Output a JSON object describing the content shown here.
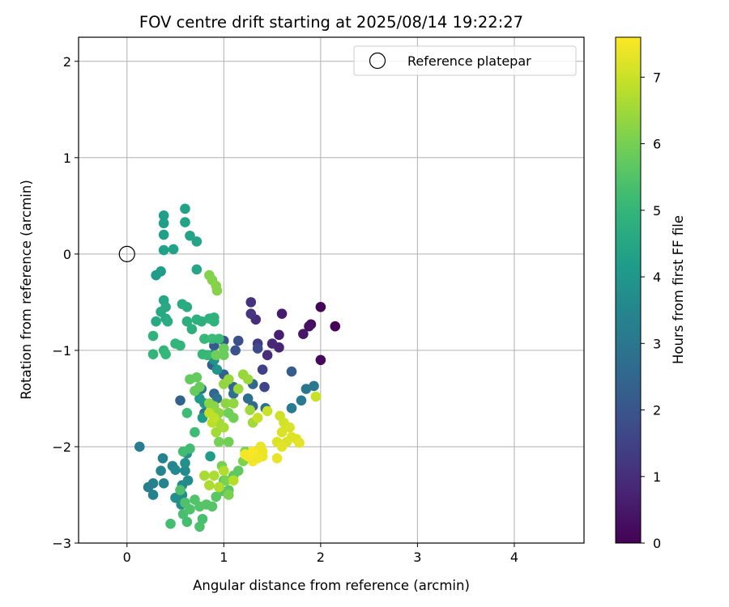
{
  "chart_data": {
    "type": "scatter",
    "title": "FOV centre drift starting at 2025/08/14 19:22:27",
    "xlabel": "Angular distance from reference (arcmin)",
    "ylabel": "Rotation from reference (arcmin)",
    "xlim": [
      -0.5,
      4.72
    ],
    "ylim": [
      -3,
      2.25
    ],
    "xticks": [
      0,
      1,
      2,
      3,
      4
    ],
    "yticks": [
      -3,
      -2,
      -1,
      0,
      1,
      2
    ],
    "grid": true,
    "legend": {
      "placement": "top-right",
      "entries": [
        "Reference platepar"
      ]
    },
    "reference_point": {
      "x": 0,
      "y": 0,
      "label": "Reference platepar"
    },
    "colorbar": {
      "label": "Hours from first FF file",
      "range": [
        0,
        7.6
      ],
      "ticks": [
        0,
        1,
        2,
        3,
        4,
        5,
        6,
        7
      ],
      "colormap": "viridis"
    },
    "points": [
      [
        2.15,
        -0.75,
        0.05
      ],
      [
        2.0,
        -0.55,
        0.1
      ],
      [
        2.0,
        -1.1,
        0.15
      ],
      [
        1.9,
        -0.73,
        0.25
      ],
      [
        1.88,
        -0.75,
        0.35
      ],
      [
        1.82,
        -0.83,
        0.45
      ],
      [
        1.6,
        -0.62,
        0.55
      ],
      [
        1.57,
        -0.84,
        0.65
      ],
      [
        1.57,
        -0.97,
        0.75
      ],
      [
        1.5,
        -0.93,
        0.85
      ],
      [
        1.45,
        -1.05,
        0.95
      ],
      [
        1.33,
        -0.68,
        1.0
      ],
      [
        1.28,
        -0.5,
        1.1
      ],
      [
        1.28,
        -0.62,
        1.2
      ],
      [
        1.35,
        -0.93,
        1.3
      ],
      [
        1.4,
        -1.2,
        1.45
      ],
      [
        1.42,
        -1.38,
        1.6
      ],
      [
        1.35,
        -0.98,
        1.7
      ],
      [
        1.15,
        -0.9,
        1.85
      ],
      [
        1.12,
        -1.0,
        1.95
      ],
      [
        1.0,
        -0.9,
        2.05
      ],
      [
        0.9,
        -0.95,
        2.15
      ],
      [
        0.88,
        -1.15,
        2.25
      ],
      [
        1.0,
        -1.25,
        2.35
      ],
      [
        1.1,
        -1.38,
        2.45
      ],
      [
        0.9,
        -1.45,
        2.5
      ],
      [
        1.3,
        -1.35,
        2.55
      ],
      [
        1.3,
        -1.58,
        2.6
      ],
      [
        1.43,
        -1.6,
        2.7
      ],
      [
        1.25,
        -1.5,
        2.75
      ],
      [
        1.1,
        -1.45,
        2.8
      ],
      [
        0.93,
        -1.5,
        2.85
      ],
      [
        0.8,
        -1.65,
        2.9
      ],
      [
        0.77,
        -1.4,
        2.95
      ],
      [
        0.55,
        -1.52,
        2.4
      ],
      [
        1.7,
        -1.22,
        2.2
      ],
      [
        1.85,
        -1.4,
        3.0
      ],
      [
        1.93,
        -1.37,
        3.05
      ],
      [
        1.8,
        -1.52,
        3.1
      ],
      [
        1.7,
        -1.6,
        3.15
      ],
      [
        0.13,
        -2.0,
        3.2
      ],
      [
        0.22,
        -2.42,
        3.25
      ],
      [
        0.27,
        -2.38,
        3.3
      ],
      [
        0.27,
        -2.5,
        3.35
      ],
      [
        0.37,
        -2.12,
        3.4
      ],
      [
        0.35,
        -2.25,
        3.45
      ],
      [
        0.38,
        -2.38,
        3.45
      ],
      [
        0.47,
        -2.2,
        3.5
      ],
      [
        0.5,
        -2.24,
        3.55
      ],
      [
        0.6,
        -2.25,
        3.6
      ],
      [
        0.63,
        -2.35,
        3.65
      ],
      [
        0.57,
        -2.4,
        3.65
      ],
      [
        0.57,
        -2.5,
        3.7
      ],
      [
        0.5,
        -2.53,
        3.75
      ],
      [
        0.56,
        -2.6,
        3.75
      ],
      [
        0.6,
        -2.17,
        3.8
      ],
      [
        0.62,
        -2.07,
        3.8
      ],
      [
        0.88,
        -1.05,
        3.85
      ],
      [
        0.9,
        -1.1,
        3.9
      ],
      [
        0.93,
        -1.2,
        3.95
      ],
      [
        0.8,
        -1.55,
        4.0
      ],
      [
        0.75,
        -1.5,
        4.05
      ],
      [
        0.78,
        -1.7,
        4.1
      ],
      [
        0.86,
        -2.1,
        4.15
      ],
      [
        0.3,
        -0.22,
        4.2
      ],
      [
        0.35,
        -0.18,
        4.2
      ],
      [
        0.38,
        0.4,
        4.25
      ],
      [
        0.38,
        0.32,
        4.25
      ],
      [
        0.38,
        0.2,
        4.3
      ],
      [
        0.38,
        0.04,
        4.3
      ],
      [
        0.48,
        0.05,
        4.35
      ],
      [
        0.6,
        0.47,
        4.35
      ],
      [
        0.6,
        0.33,
        4.4
      ],
      [
        0.65,
        0.19,
        4.4
      ],
      [
        0.72,
        0.13,
        4.45
      ],
      [
        0.72,
        -0.16,
        4.45
      ],
      [
        0.38,
        -0.48,
        4.5
      ],
      [
        0.4,
        -0.55,
        4.55
      ],
      [
        0.4,
        -0.67,
        4.55
      ],
      [
        0.35,
        -0.6,
        4.6
      ],
      [
        0.3,
        -0.7,
        4.6
      ],
      [
        0.42,
        -0.7,
        4.65
      ],
      [
        0.57,
        -0.52,
        4.7
      ],
      [
        0.62,
        -0.55,
        4.7
      ],
      [
        0.62,
        -0.7,
        4.75
      ],
      [
        0.67,
        -0.78,
        4.75
      ],
      [
        0.72,
        -0.68,
        4.8
      ],
      [
        0.77,
        -0.7,
        4.8
      ],
      [
        0.85,
        -0.67,
        4.85
      ],
      [
        0.9,
        -0.66,
        4.85
      ],
      [
        0.9,
        -0.7,
        4.9
      ],
      [
        0.27,
        -0.85,
        4.9
      ],
      [
        0.5,
        -0.93,
        4.95
      ],
      [
        0.55,
        -0.95,
        4.95
      ],
      [
        0.38,
        -1.0,
        5.0
      ],
      [
        0.27,
        -1.04,
        5.0
      ],
      [
        0.4,
        -1.04,
        5.05
      ],
      [
        0.78,
        -1.04,
        5.05
      ],
      [
        0.83,
        -1.05,
        5.1
      ],
      [
        0.8,
        -0.88,
        5.1
      ],
      [
        0.88,
        -0.88,
        5.15
      ],
      [
        0.95,
        -0.88,
        5.15
      ],
      [
        0.7,
        -1.85,
        5.2
      ],
      [
        0.62,
        -1.65,
        5.2
      ],
      [
        0.65,
        -2.02,
        5.25
      ],
      [
        0.58,
        -2.05,
        5.25
      ],
      [
        0.45,
        -2.8,
        5.3
      ],
      [
        0.62,
        -2.78,
        5.3
      ],
      [
        0.58,
        -2.7,
        5.35
      ],
      [
        0.78,
        -2.75,
        5.35
      ],
      [
        0.75,
        -2.83,
        5.4
      ],
      [
        0.55,
        -2.45,
        5.4
      ],
      [
        0.6,
        -2.58,
        5.45
      ],
      [
        0.65,
        -2.65,
        5.45
      ],
      [
        0.7,
        -2.55,
        5.5
      ],
      [
        0.75,
        -2.62,
        5.5
      ],
      [
        0.82,
        -2.6,
        5.55
      ],
      [
        0.88,
        -2.62,
        5.55
      ],
      [
        0.92,
        -2.52,
        5.6
      ],
      [
        0.98,
        -2.46,
        5.6
      ],
      [
        1.05,
        -2.45,
        5.65
      ],
      [
        1.0,
        -2.35,
        5.65
      ],
      [
        1.1,
        -2.3,
        5.7
      ],
      [
        1.15,
        -2.25,
        5.7
      ],
      [
        0.65,
        -1.3,
        5.75
      ],
      [
        0.72,
        -1.28,
        5.75
      ],
      [
        0.75,
        -1.38,
        5.8
      ],
      [
        0.7,
        -1.42,
        5.8
      ],
      [
        1.0,
        -0.98,
        5.85
      ],
      [
        1.0,
        -1.05,
        5.85
      ],
      [
        0.92,
        -1.05,
        5.9
      ],
      [
        1.05,
        -1.65,
        5.9
      ],
      [
        1.1,
        -1.7,
        5.95
      ],
      [
        1.05,
        -1.95,
        5.95
      ],
      [
        0.95,
        -1.95,
        6.0
      ],
      [
        0.98,
        -2.2,
        6.0
      ],
      [
        1.02,
        -2.35,
        6.05
      ],
      [
        1.05,
        -2.5,
        6.05
      ],
      [
        1.2,
        -2.15,
        6.1
      ],
      [
        1.22,
        -2.05,
        6.1
      ],
      [
        0.85,
        -0.22,
        6.15
      ],
      [
        0.88,
        -0.27,
        6.15
      ],
      [
        0.92,
        -0.33,
        6.2
      ],
      [
        0.93,
        -0.38,
        6.2
      ],
      [
        0.85,
        -1.55,
        6.25
      ],
      [
        0.9,
        -1.58,
        6.25
      ],
      [
        0.95,
        -1.65,
        6.3
      ],
      [
        1.02,
        -1.55,
        6.3
      ],
      [
        1.1,
        -1.55,
        6.35
      ],
      [
        1.0,
        -1.35,
        6.35
      ],
      [
        1.05,
        -1.3,
        6.4
      ],
      [
        1.2,
        -1.25,
        6.4
      ],
      [
        1.25,
        -1.3,
        6.45
      ],
      [
        1.15,
        -1.4,
        6.45
      ],
      [
        1.27,
        -1.62,
        6.5
      ],
      [
        1.3,
        -1.75,
        6.5
      ],
      [
        0.92,
        -1.85,
        6.55
      ],
      [
        0.95,
        -1.75,
        6.55
      ],
      [
        1.0,
        -1.8,
        6.6
      ],
      [
        0.8,
        -2.3,
        6.6
      ],
      [
        0.85,
        -2.4,
        6.65
      ],
      [
        0.9,
        -2.3,
        6.65
      ],
      [
        0.95,
        -2.42,
        6.7
      ],
      [
        1.0,
        -2.25,
        6.7
      ],
      [
        1.1,
        -2.35,
        6.75
      ],
      [
        0.88,
        -1.75,
        6.8
      ],
      [
        0.85,
        -1.65,
        6.85
      ],
      [
        0.9,
        -1.7,
        6.9
      ],
      [
        1.35,
        -1.7,
        6.95
      ],
      [
        1.45,
        -1.63,
        7.0
      ],
      [
        1.58,
        -1.68,
        7.05
      ],
      [
        1.62,
        -1.75,
        7.1
      ],
      [
        1.68,
        -1.8,
        7.15
      ],
      [
        1.6,
        -1.85,
        7.15
      ],
      [
        1.55,
        -1.95,
        7.2
      ],
      [
        1.65,
        -1.95,
        7.2
      ],
      [
        1.7,
        -1.9,
        7.25
      ],
      [
        1.75,
        -1.92,
        7.25
      ],
      [
        1.78,
        -1.96,
        7.3
      ],
      [
        1.6,
        -2.0,
        7.3
      ],
      [
        1.55,
        -2.12,
        7.35
      ],
      [
        1.38,
        -2.0,
        7.35
      ],
      [
        1.4,
        -2.05,
        7.4
      ],
      [
        1.4,
        -2.1,
        7.4
      ],
      [
        1.35,
        -2.12,
        7.45
      ],
      [
        1.3,
        -2.15,
        7.45
      ],
      [
        1.25,
        -2.1,
        7.5
      ],
      [
        1.22,
        -2.08,
        7.5
      ],
      [
        1.95,
        -1.48,
        7.0
      ],
      [
        1.3,
        -2.05,
        7.55
      ]
    ]
  }
}
